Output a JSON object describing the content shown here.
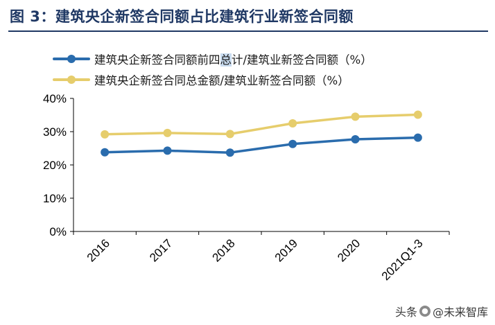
{
  "header": {
    "title": "图 3：建筑央企新签合同额占比建筑行业新签合同额"
  },
  "legend": {
    "items": [
      {
        "pre": "建筑央企新签合同额前四",
        "highlight": "总",
        "post": "计/建筑业新签合同额（%）"
      },
      {
        "pre": "建筑央企新签合同总金额/建筑业新签合同额（%）",
        "highlight": "",
        "post": ""
      }
    ]
  },
  "watermark": {
    "prefix": "头条",
    "icon": "wechat-icon",
    "source": "@未来智库"
  },
  "chart_data": {
    "type": "line",
    "categories": [
      "2016",
      "2017",
      "2018",
      "2019",
      "2020",
      "2021Q1-3"
    ],
    "series": [
      {
        "name": "建筑央企新签合同额前四总计/建筑业新签合同额（%）",
        "color": "#2a6cad",
        "values": [
          23.8,
          24.3,
          23.7,
          26.3,
          27.7,
          28.2
        ]
      },
      {
        "name": "建筑央企新签合同总金额/建筑业新签合同额（%）",
        "color": "#e6cd6c",
        "values": [
          29.2,
          29.6,
          29.3,
          32.5,
          34.5,
          35.1
        ]
      }
    ],
    "ylim": [
      0,
      40
    ],
    "yticks": [
      0,
      10,
      20,
      30,
      40
    ],
    "ytick_labels": [
      "0%",
      "10%",
      "20%",
      "30%",
      "40%"
    ],
    "grid": false,
    "legend_position": "top-left"
  }
}
